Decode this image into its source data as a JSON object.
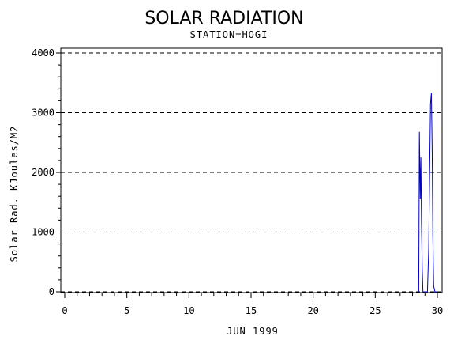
{
  "chart_data": {
    "type": "line",
    "title": "SOLAR RADIATION",
    "subtitle": "STATION=HOGI",
    "xlabel": "JUN 1999",
    "ylabel": "Solar Rad. KJoules/M2",
    "xlim": [
      0,
      30
    ],
    "ylim": [
      0,
      4000
    ],
    "xticks": [
      0,
      5,
      10,
      15,
      20,
      25,
      30
    ],
    "yticks": [
      0,
      1000,
      2000,
      3000,
      4000
    ],
    "grid": "horizontal-dashed",
    "series": [
      {
        "color": "#0000cc",
        "x": [
          28.5,
          28.55,
          28.62,
          28.67,
          28.72,
          28.78,
          28.84,
          28.9,
          29.0,
          29.1,
          29.2,
          29.3,
          29.38,
          29.45,
          29.52,
          29.58,
          29.64,
          29.7,
          29.8,
          30.0
        ],
        "y": [
          0,
          2680,
          1550,
          2250,
          1150,
          400,
          0,
          0,
          0,
          0,
          0,
          700,
          2000,
          3150,
          3330,
          2400,
          900,
          100,
          0,
          0
        ]
      }
    ]
  }
}
